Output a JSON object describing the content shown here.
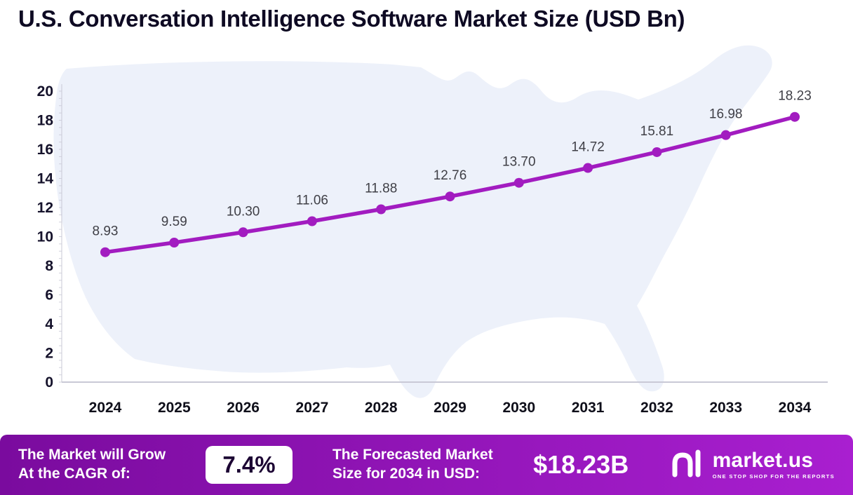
{
  "header": {
    "title": "U.S. Conversation Intelligence Software Market Size (USD Bn)"
  },
  "chart_data": {
    "type": "line",
    "title": "U.S. Conversation Intelligence Software Market Size (USD Bn)",
    "categories": [
      "2024",
      "2025",
      "2026",
      "2027",
      "2028",
      "2029",
      "2030",
      "2031",
      "2032",
      "2033",
      "2034"
    ],
    "values": [
      8.93,
      9.59,
      10.3,
      11.06,
      11.88,
      12.76,
      13.7,
      14.72,
      15.81,
      16.98,
      18.23
    ],
    "xlabel": "",
    "ylabel": "",
    "ylim": [
      0,
      20
    ],
    "yticks": [
      0,
      2,
      4,
      6,
      8,
      10,
      12,
      14,
      16,
      18,
      20
    ],
    "grid": false,
    "legend": "none",
    "marker": "circle",
    "value_label_decimals": 2
  },
  "colors": {
    "line": "#a21cc0",
    "marker": "#a21cc0",
    "axis": "#c9c9d6",
    "map_fill": "#edf1fa",
    "footer_gradient_left": "#7a0b9e",
    "footer_gradient_right": "#a91fd0",
    "title_text": "#0e0a23",
    "pill_text": "#1c0433"
  },
  "footer": {
    "cagr_label_line1": "The Market will Grow",
    "cagr_label_line2": "At the CAGR of:",
    "cagr_value": "7.4%",
    "forecast_label_line1": "The Forecasted Market",
    "forecast_label_line2": "Size for 2034 in USD:",
    "forecast_value": "$18.23B",
    "brand": "market.us",
    "brand_tagline": "ONE STOP SHOP FOR THE REPORTS"
  }
}
